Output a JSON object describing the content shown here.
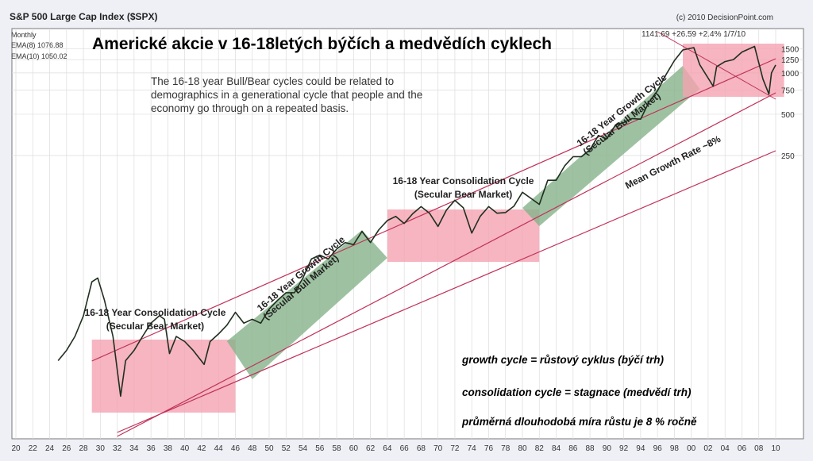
{
  "header": {
    "index_title": "S&P 500 Large Cap Index ($SPX)",
    "copyright": "(c) 2010 DecisionPoint.com",
    "period": "Monthly",
    "ema8": "EMA(8) 1076.88",
    "ema10": "EMA(10) 1050.02",
    "last_values": "1141.69  +26.59  +2.4%  1/7/10"
  },
  "headline": "Americké akcie v 16-18letých býčích a medvědích cyklech",
  "note": "The 16-18 year Bull/Bear cycles could be related to demographics in a generational cycle that people and the economy go through on a repeated basis.",
  "legend": {
    "growth": "growth cycle = růstový cyklus (býčí trh)",
    "consolidation": "consolidation cycle = stagnace (medvědí trh)",
    "mean_rate": "průměrná dlouhodobá míra růstu je 8 % ročně"
  },
  "colors": {
    "bear_fill": "#f4a3b0",
    "bull_fill": "#86b38a",
    "trend_line": "#c0315a",
    "orange_band": "#e0a070",
    "price_line": "#1f2f1f"
  },
  "chart_data": {
    "type": "line",
    "scale": "log",
    "x_ticks": [
      "20",
      "22",
      "24",
      "26",
      "28",
      "30",
      "32",
      "34",
      "36",
      "38",
      "40",
      "42",
      "44",
      "46",
      "48",
      "50",
      "52",
      "54",
      "56",
      "58",
      "60",
      "62",
      "64",
      "66",
      "68",
      "70",
      "72",
      "74",
      "76",
      "78",
      "80",
      "82",
      "84",
      "86",
      "88",
      "90",
      "92",
      "94",
      "96",
      "98",
      "00",
      "02",
      "04",
      "06",
      "08",
      "10"
    ],
    "y_ticks": [
      "1500",
      "1250",
      "1000",
      "750",
      "500",
      "250"
    ],
    "series": [
      {
        "name": "S&P 500",
        "points": [
          [
            1925,
            8
          ],
          [
            1926,
            9.5
          ],
          [
            1927,
            12
          ],
          [
            1928,
            17
          ],
          [
            1929,
            30
          ],
          [
            1929.7,
            32
          ],
          [
            1930.5,
            22
          ],
          [
            1931.5,
            12
          ],
          [
            1932.4,
            4.4
          ],
          [
            1933,
            8
          ],
          [
            1934,
            9.5
          ],
          [
            1935,
            12
          ],
          [
            1936,
            15
          ],
          [
            1937,
            17
          ],
          [
            1937.6,
            16
          ],
          [
            1938.2,
            9
          ],
          [
            1939,
            12
          ],
          [
            1940,
            11
          ],
          [
            1941,
            9.5
          ],
          [
            1942.3,
            7.5
          ],
          [
            1943,
            11
          ],
          [
            1944,
            12.5
          ],
          [
            1945,
            14.5
          ],
          [
            1946,
            18
          ],
          [
            1947,
            15
          ],
          [
            1948,
            16
          ],
          [
            1949,
            15
          ],
          [
            1950,
            19
          ],
          [
            1951,
            22
          ],
          [
            1952,
            25
          ],
          [
            1953,
            25
          ],
          [
            1954,
            32
          ],
          [
            1955,
            44
          ],
          [
            1956,
            47
          ],
          [
            1957,
            44
          ],
          [
            1958,
            52
          ],
          [
            1959,
            58
          ],
          [
            1960,
            56
          ],
          [
            1961,
            70
          ],
          [
            1962,
            58
          ],
          [
            1963,
            72
          ],
          [
            1964,
            84
          ],
          [
            1965,
            90
          ],
          [
            1966,
            80
          ],
          [
            1967,
            94
          ],
          [
            1968,
            106
          ],
          [
            1969,
            95
          ],
          [
            1970,
            76
          ],
          [
            1971,
            100
          ],
          [
            1972,
            118
          ],
          [
            1973,
            104
          ],
          [
            1974,
            68
          ],
          [
            1975,
            90
          ],
          [
            1976,
            106
          ],
          [
            1977,
            95
          ],
          [
            1978,
            96
          ],
          [
            1979,
            107
          ],
          [
            1980,
            135
          ],
          [
            1981,
            122
          ],
          [
            1982,
            110
          ],
          [
            1983,
            165
          ],
          [
            1984,
            165
          ],
          [
            1985,
            210
          ],
          [
            1986,
            245
          ],
          [
            1987,
            245
          ],
          [
            1988,
            275
          ],
          [
            1989,
            350
          ],
          [
            1990,
            330
          ],
          [
            1991,
            415
          ],
          [
            1992,
            435
          ],
          [
            1993,
            465
          ],
          [
            1994,
            460
          ],
          [
            1995,
            615
          ],
          [
            1996,
            740
          ],
          [
            1997,
            970
          ],
          [
            1998,
            1230
          ],
          [
            1999,
            1470
          ],
          [
            2000.3,
            1530
          ],
          [
            2001,
            1150
          ],
          [
            2002.6,
            800
          ],
          [
            2003,
            1110
          ],
          [
            2004,
            1210
          ],
          [
            2005,
            1250
          ],
          [
            2006,
            1420
          ],
          [
            2007.5,
            1560
          ],
          [
            2008.5,
            900
          ],
          [
            2009.2,
            700
          ],
          [
            2009.5,
            1000
          ],
          [
            2010,
            1141.69
          ]
        ]
      }
    ],
    "annotations": [
      {
        "text": "16-18 Year Consolidation Cycle",
        "sub": "(Secular Bear Market)",
        "kind": "bear",
        "x": [
          1929,
          1946
        ]
      },
      {
        "text": "16-18 Year Growth Cycle",
        "sub": "(Secular Bull Market)",
        "kind": "bull",
        "x": [
          1946,
          1964
        ]
      },
      {
        "text": "16-18 Year Consolidation Cycle",
        "sub": "(Secular Bear Market)",
        "kind": "bear",
        "x": [
          1964,
          1982
        ]
      },
      {
        "text": "16-18 Year Growth Cycle",
        "sub": "(Secular Bull Market)",
        "kind": "bull",
        "x": [
          1982,
          2000
        ]
      },
      {
        "text": "",
        "sub": "",
        "kind": "bear",
        "x": [
          2000,
          2010
        ]
      }
    ],
    "trend_label": "Mean Growth Rate ~8%"
  }
}
